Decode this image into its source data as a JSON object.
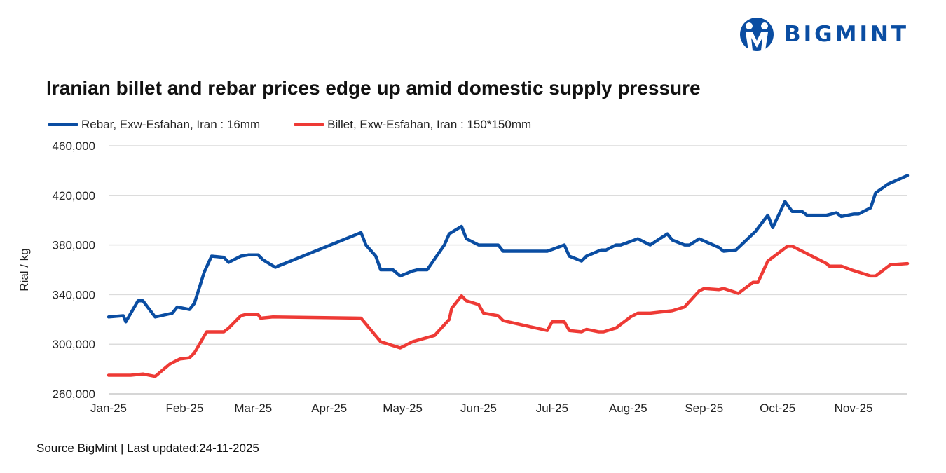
{
  "logo": {
    "text": "BIGMINT",
    "brand_color": "#0a4da2"
  },
  "source": "Source BigMint | Last updated:24-11-2025",
  "chart_data": {
    "type": "line",
    "title": "Iranian billet and rebar prices edge up amid domestic supply pressure",
    "xlabel": "",
    "ylabel": "Rial / kg",
    "xlim": [
      "2025-01-01",
      "2025-11-23"
    ],
    "ylim": [
      260000,
      460000
    ],
    "y_ticks": [
      260000,
      300000,
      340000,
      380000,
      420000,
      460000
    ],
    "y_tick_labels": [
      "260,000",
      "300,000",
      "340,000",
      "380,000",
      "420,000",
      "460,000"
    ],
    "x_ticks": [
      "2025-01-01",
      "2025-02-01",
      "2025-03-01",
      "2025-04-01",
      "2025-05-01",
      "2025-06-01",
      "2025-07-01",
      "2025-08-01",
      "2025-09-01",
      "2025-10-01",
      "2025-11-01"
    ],
    "x_tick_labels": [
      "Jan-25",
      "Feb-25",
      "Mar-25",
      "Apr-25",
      "May-25",
      "Jun-25",
      "Jul-25",
      "Aug-25",
      "Sep-25",
      "Oct-25",
      "Nov-25"
    ],
    "grid": "horizontal",
    "legend_position": "top-left",
    "series": [
      {
        "name": "Rebar, Exw-Esfahan, Iran : 16mm",
        "color": "#0a4da2",
        "x": [
          "2025-01-01",
          "2025-01-07",
          "2025-01-08",
          "2025-01-13",
          "2025-01-15",
          "2025-01-20",
          "2025-01-27",
          "2025-01-29",
          "2025-02-03",
          "2025-02-05",
          "2025-02-09",
          "2025-02-12",
          "2025-02-17",
          "2025-02-19",
          "2025-02-24",
          "2025-02-27",
          "2025-03-03",
          "2025-03-05",
          "2025-03-10",
          "2025-04-14",
          "2025-04-16",
          "2025-04-20",
          "2025-04-22",
          "2025-04-27",
          "2025-04-30",
          "2025-05-05",
          "2025-05-07",
          "2025-05-11",
          "2025-05-18",
          "2025-05-20",
          "2025-05-25",
          "2025-05-27",
          "2025-06-01",
          "2025-06-09",
          "2025-06-11",
          "2025-06-29",
          "2025-07-06",
          "2025-07-08",
          "2025-07-13",
          "2025-07-15",
          "2025-07-21",
          "2025-07-23",
          "2025-07-27",
          "2025-07-29",
          "2025-08-05",
          "2025-08-10",
          "2025-08-17",
          "2025-08-19",
          "2025-08-24",
          "2025-08-26",
          "2025-08-30",
          "2025-09-07",
          "2025-09-09",
          "2025-09-14",
          "2025-09-22",
          "2025-09-27",
          "2025-09-29",
          "2025-10-04",
          "2025-10-07",
          "2025-10-11",
          "2025-10-13",
          "2025-10-21",
          "2025-10-25",
          "2025-10-27",
          "2025-11-01",
          "2025-11-03",
          "2025-11-08",
          "2025-11-10",
          "2025-11-15",
          "2025-11-23"
        ],
        "y": [
          322000,
          323000,
          318000,
          335000,
          335000,
          322000,
          325000,
          330000,
          328000,
          333000,
          358000,
          371000,
          370000,
          366000,
          371000,
          372000,
          372000,
          368000,
          362000,
          390000,
          380000,
          371000,
          360000,
          360000,
          355000,
          359000,
          360000,
          360000,
          380000,
          389000,
          395000,
          385000,
          380000,
          380000,
          375000,
          375000,
          380000,
          371000,
          367000,
          371000,
          376000,
          376000,
          380000,
          380000,
          385000,
          380000,
          389000,
          384000,
          380000,
          380000,
          385000,
          378000,
          375000,
          376000,
          391000,
          404000,
          394000,
          415000,
          407000,
          407000,
          404000,
          404000,
          406000,
          403000,
          405000,
          405000,
          410000,
          422000,
          429000,
          436000
        ]
      },
      {
        "name": "Billet, Exw-Esfahan, Iran : 150*150mm",
        "color": "#ee3a35",
        "x": [
          "2025-01-01",
          "2025-01-05",
          "2025-01-10",
          "2025-01-15",
          "2025-01-20",
          "2025-01-26",
          "2025-01-30",
          "2025-02-03",
          "2025-02-05",
          "2025-02-10",
          "2025-02-17",
          "2025-02-19",
          "2025-02-24",
          "2025-02-26",
          "2025-03-03",
          "2025-03-04",
          "2025-03-09",
          "2025-04-14",
          "2025-04-22",
          "2025-04-30",
          "2025-05-05",
          "2025-05-14",
          "2025-05-20",
          "2025-05-21",
          "2025-05-25",
          "2025-05-27",
          "2025-06-01",
          "2025-06-03",
          "2025-06-09",
          "2025-06-11",
          "2025-06-29",
          "2025-07-01",
          "2025-07-06",
          "2025-07-08",
          "2025-07-13",
          "2025-07-15",
          "2025-07-20",
          "2025-07-22",
          "2025-07-27",
          "2025-08-02",
          "2025-08-05",
          "2025-08-10",
          "2025-08-19",
          "2025-08-24",
          "2025-08-30",
          "2025-09-01",
          "2025-09-07",
          "2025-09-09",
          "2025-09-15",
          "2025-09-21",
          "2025-09-23",
          "2025-09-27",
          "2025-10-05",
          "2025-10-07",
          "2025-10-21",
          "2025-10-22",
          "2025-10-27",
          "2025-10-31",
          "2025-11-08",
          "2025-11-10",
          "2025-11-16",
          "2025-11-23"
        ],
        "y": [
          275000,
          275000,
          275000,
          276000,
          274000,
          284000,
          288000,
          289000,
          293000,
          310000,
          310000,
          313000,
          323000,
          324000,
          324000,
          321000,
          322000,
          321000,
          302000,
          297000,
          302000,
          307000,
          320000,
          329000,
          339000,
          335000,
          332000,
          325000,
          323000,
          319000,
          311000,
          318000,
          318000,
          311000,
          310000,
          312000,
          310000,
          310000,
          313000,
          322000,
          325000,
          325000,
          327000,
          330000,
          343000,
          345000,
          344000,
          345000,
          341000,
          350000,
          350000,
          367000,
          379000,
          379000,
          365000,
          363000,
          363000,
          360000,
          355000,
          355000,
          364000,
          365000
        ]
      }
    ]
  }
}
